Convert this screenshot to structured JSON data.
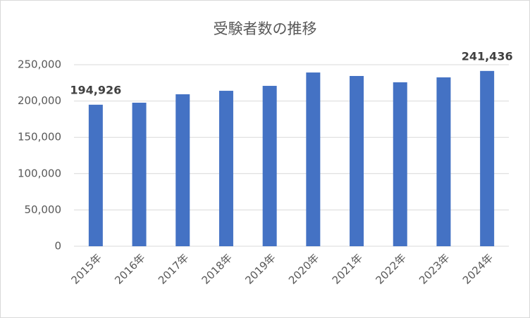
{
  "chart_data": {
    "type": "bar",
    "title": "受験者数の推移",
    "categories": [
      "2015年",
      "2016年",
      "2017年",
      "2018年",
      "2019年",
      "2020年",
      "2021年",
      "2022年",
      "2023年",
      "2024年"
    ],
    "values": [
      194926,
      197700,
      209300,
      214100,
      220900,
      239300,
      234500,
      225800,
      232600,
      241436
    ],
    "value_labels": [
      "194,926",
      null,
      null,
      null,
      null,
      null,
      null,
      null,
      null,
      "241,436"
    ],
    "color": "#4472c4",
    "ylim": [
      0,
      250000
    ],
    "yticks": [
      0,
      {
        "value": 50000,
        "label": "50,000"
      },
      {
        "value": 100000,
        "label": "100,000"
      },
      {
        "value": 150000,
        "label": "150,000"
      },
      {
        "value": 200000,
        "label": "200,000"
      },
      {
        "value": 250000,
        "label": "250,000"
      }
    ],
    "grid": true
  }
}
